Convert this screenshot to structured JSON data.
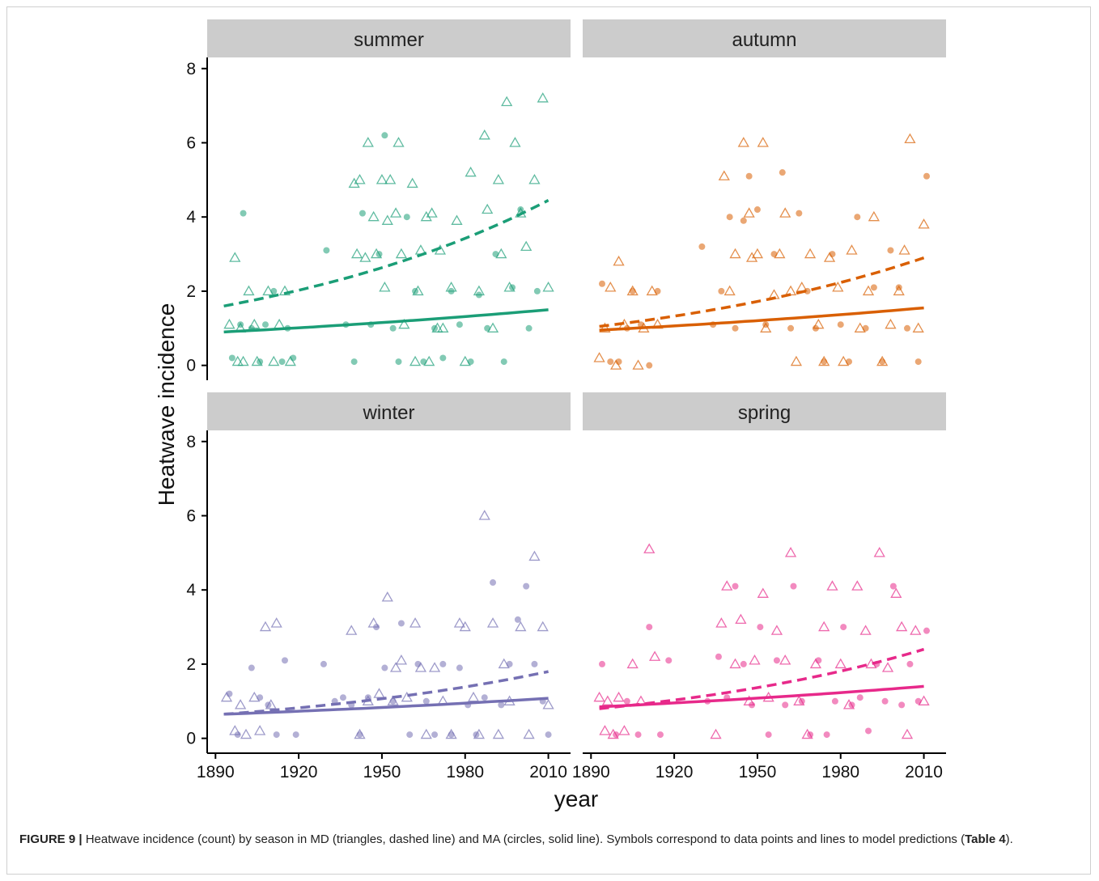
{
  "caption": {
    "label": "FIGURE 9 |",
    "text_before": " Heatwave incidence (count) by season in MD (triangles, dashed line) and MA (circles, solid line). Symbols correspond to data points and lines to model predictions (",
    "ref": "Table 4",
    "text_after": ")."
  },
  "chart_data": {
    "type": "scatter",
    "xlabel": "year",
    "ylabel": "Heatwave incidence",
    "xlim": [
      1887,
      2018
    ],
    "ylim": [
      -0.4,
      8.3
    ],
    "xticks": [
      1890,
      1920,
      1950,
      1980,
      2010
    ],
    "yticks": [
      0,
      2,
      4,
      6,
      8
    ],
    "grid": false,
    "legend": "none",
    "panels": [
      {
        "facet": "summer",
        "color": "#1b9e77",
        "MD": {
          "x": [
            1895,
            1897,
            1898,
            1899,
            1900,
            1902,
            1904,
            1905,
            1909,
            1911,
            1913,
            1915,
            1917,
            1940,
            1941,
            1942,
            1944,
            1945,
            1947,
            1948,
            1950,
            1951,
            1952,
            1953,
            1955,
            1956,
            1957,
            1958,
            1961,
            1962,
            1963,
            1964,
            1966,
            1967,
            1968,
            1970,
            1971,
            1972,
            1975,
            1977,
            1980,
            1982,
            1985,
            1987,
            1988,
            1990,
            1992,
            1993,
            1995,
            1996,
            1998,
            2000,
            2002,
            2005,
            2008,
            2010
          ],
          "y": [
            1.1,
            2.9,
            0.1,
            1.0,
            0.1,
            2.0,
            1.1,
            0.1,
            2.0,
            0.1,
            1.1,
            2.0,
            0.1,
            4.9,
            3.0,
            5.0,
            2.9,
            6.0,
            4.0,
            3.0,
            5.0,
            2.1,
            3.9,
            5.0,
            4.1,
            6.0,
            3.0,
            1.1,
            4.9,
            0.1,
            2.0,
            3.1,
            4.0,
            0.1,
            4.1,
            1.0,
            3.1,
            1.0,
            2.1,
            3.9,
            0.1,
            5.2,
            2.0,
            6.2,
            4.2,
            1.0,
            5.0,
            3.0,
            7.1,
            2.1,
            6.0,
            4.1,
            3.2,
            5.0,
            7.2,
            2.1
          ],
          "fit": {
            "x": [
              1893,
              2010
            ],
            "y": [
              1.6,
              4.45
            ]
          }
        },
        "MA": {
          "x": [
            1896,
            1899,
            1900,
            1903,
            1906,
            1908,
            1911,
            1914,
            1916,
            1918,
            1930,
            1937,
            1940,
            1943,
            1946,
            1949,
            1951,
            1954,
            1956,
            1959,
            1962,
            1965,
            1969,
            1972,
            1975,
            1978,
            1982,
            1985,
            1988,
            1991,
            1994,
            1997,
            2000,
            2003,
            2006
          ],
          "y": [
            0.2,
            1.1,
            4.1,
            1.0,
            0.1,
            1.1,
            2.0,
            0.1,
            1.0,
            0.2,
            3.1,
            1.1,
            0.1,
            4.1,
            1.1,
            3.0,
            6.2,
            1.0,
            0.1,
            4.0,
            2.0,
            0.1,
            1.0,
            0.2,
            2.0,
            1.1,
            0.1,
            1.9,
            1.0,
            3.0,
            0.1,
            2.1,
            4.2,
            1.0,
            2.0
          ],
          "fit": {
            "x": [
              1893,
              2010
            ],
            "y": [
              0.9,
              1.5
            ]
          }
        }
      },
      {
        "facet": "autumn",
        "color": "#d95f02",
        "MD": {
          "x": [
            1893,
            1895,
            1897,
            1899,
            1900,
            1902,
            1905,
            1907,
            1909,
            1912,
            1914,
            1938,
            1940,
            1942,
            1945,
            1947,
            1948,
            1950,
            1952,
            1953,
            1956,
            1958,
            1960,
            1962,
            1964,
            1966,
            1969,
            1972,
            1974,
            1976,
            1979,
            1981,
            1984,
            1987,
            1990,
            1992,
            1995,
            1998,
            2001,
            2003,
            2005,
            2008,
            2010
          ],
          "y": [
            0.2,
            1.0,
            2.1,
            0.0,
            2.8,
            1.1,
            2.0,
            0.0,
            1.0,
            2.0,
            1.1,
            5.1,
            2.0,
            3.0,
            6.0,
            4.1,
            2.9,
            3.0,
            6.0,
            1.0,
            1.9,
            3.0,
            4.1,
            2.0,
            0.1,
            2.1,
            3.0,
            1.1,
            0.1,
            2.9,
            2.1,
            0.1,
            3.1,
            1.0,
            2.0,
            4.0,
            0.1,
            1.1,
            2.0,
            3.1,
            6.1,
            1.0,
            3.8
          ],
          "fit": {
            "x": [
              1893,
              2010
            ],
            "y": [
              1.05,
              2.9
            ]
          }
        },
        "MA": {
          "x": [
            1894,
            1897,
            1900,
            1903,
            1905,
            1908,
            1911,
            1914,
            1930,
            1934,
            1937,
            1940,
            1942,
            1945,
            1947,
            1950,
            1953,
            1956,
            1959,
            1962,
            1965,
            1968,
            1971,
            1974,
            1977,
            1980,
            1983,
            1986,
            1989,
            1992,
            1995,
            1998,
            2001,
            2004,
            2008,
            2011
          ],
          "y": [
            2.2,
            0.1,
            0.1,
            1.0,
            2.0,
            1.1,
            0.0,
            2.0,
            3.2,
            1.1,
            2.0,
            4.0,
            1.0,
            3.9,
            5.1,
            4.2,
            1.1,
            3.0,
            5.2,
            1.0,
            4.1,
            2.0,
            1.0,
            0.1,
            3.0,
            1.1,
            0.1,
            4.0,
            1.0,
            2.1,
            0.1,
            3.1,
            2.1,
            1.0,
            0.1,
            5.1
          ],
          "fit": {
            "x": [
              1893,
              2010
            ],
            "y": [
              0.95,
              1.55
            ]
          }
        }
      },
      {
        "facet": "winter",
        "color": "#7570b3",
        "MD": {
          "x": [
            1894,
            1897,
            1899,
            1901,
            1904,
            1906,
            1908,
            1910,
            1912,
            1939,
            1942,
            1945,
            1947,
            1949,
            1952,
            1954,
            1955,
            1957,
            1959,
            1962,
            1964,
            1966,
            1969,
            1972,
            1975,
            1978,
            1980,
            1983,
            1985,
            1987,
            1990,
            1992,
            1994,
            1996,
            2000,
            2003,
            2005,
            2008,
            2010
          ],
          "y": [
            1.1,
            0.2,
            0.9,
            0.1,
            1.1,
            0.2,
            3.0,
            0.9,
            3.1,
            2.9,
            0.1,
            1.0,
            3.1,
            1.2,
            3.8,
            1.0,
            1.9,
            2.1,
            1.1,
            3.1,
            1.9,
            0.1,
            1.9,
            1.0,
            0.1,
            3.1,
            3.0,
            1.1,
            0.1,
            6.0,
            3.1,
            0.1,
            2.0,
            1.0,
            3.0,
            0.1,
            4.9,
            3.0,
            0.9
          ],
          "fit": {
            "x": [
              1893,
              2010
            ],
            "y": [
              0.65,
              1.8
            ]
          }
        },
        "MA": {
          "x": [
            1895,
            1898,
            1903,
            1906,
            1909,
            1912,
            1915,
            1919,
            1929,
            1933,
            1936,
            1939,
            1942,
            1945,
            1948,
            1951,
            1954,
            1957,
            1960,
            1963,
            1966,
            1969,
            1972,
            1975,
            1978,
            1981,
            1984,
            1987,
            1990,
            1993,
            1996,
            1999,
            2002,
            2005,
            2008,
            2010
          ],
          "y": [
            1.2,
            0.1,
            1.9,
            1.1,
            0.9,
            0.1,
            2.1,
            0.1,
            2.0,
            1.0,
            1.1,
            0.9,
            0.1,
            1.1,
            3.0,
            1.9,
            1.0,
            3.1,
            0.1,
            2.0,
            1.0,
            0.1,
            2.0,
            0.1,
            1.9,
            0.9,
            0.1,
            1.1,
            4.2,
            0.9,
            2.0,
            3.2,
            4.1,
            2.0,
            1.0,
            0.1
          ],
          "fit": {
            "x": [
              1893,
              2010
            ],
            "y": [
              0.65,
              1.08
            ]
          }
        }
      },
      {
        "facet": "spring",
        "color": "#e7298a",
        "MD": {
          "x": [
            1893,
            1895,
            1896,
            1898,
            1900,
            1902,
            1905,
            1908,
            1911,
            1913,
            1935,
            1937,
            1939,
            1942,
            1944,
            1947,
            1949,
            1952,
            1954,
            1957,
            1960,
            1962,
            1965,
            1968,
            1971,
            1974,
            1977,
            1980,
            1983,
            1986,
            1989,
            1991,
            1994,
            1997,
            2000,
            2002,
            2004,
            2007,
            2010
          ],
          "y": [
            1.1,
            0.2,
            1.0,
            0.1,
            1.1,
            0.2,
            2.0,
            1.0,
            5.1,
            2.2,
            0.1,
            3.1,
            4.1,
            2.0,
            3.2,
            1.0,
            2.1,
            3.9,
            1.1,
            2.9,
            2.1,
            5.0,
            1.0,
            0.1,
            2.0,
            3.0,
            4.1,
            2.0,
            0.9,
            4.1,
            2.9,
            2.0,
            5.0,
            1.9,
            3.9,
            3.0,
            0.1,
            2.9,
            1.0
          ],
          "fit": {
            "x": [
              1893,
              2010
            ],
            "y": [
              0.8,
              2.4
            ]
          }
        },
        "MA": {
          "x": [
            1894,
            1899,
            1903,
            1907,
            1911,
            1915,
            1918,
            1932,
            1936,
            1939,
            1942,
            1945,
            1948,
            1951,
            1954,
            1957,
            1960,
            1963,
            1966,
            1969,
            1972,
            1975,
            1978,
            1981,
            1984,
            1987,
            1990,
            1993,
            1996,
            1999,
            2002,
            2005,
            2008,
            2011
          ],
          "y": [
            2.0,
            0.1,
            1.0,
            0.1,
            3.0,
            0.1,
            2.1,
            1.0,
            2.2,
            1.1,
            4.1,
            2.0,
            0.9,
            3.0,
            0.1,
            2.1,
            0.9,
            4.1,
            1.0,
            0.1,
            2.1,
            0.1,
            1.0,
            3.0,
            0.9,
            1.1,
            0.2,
            2.0,
            1.0,
            4.1,
            0.9,
            2.0,
            1.0,
            2.9
          ],
          "fit": {
            "x": [
              1893,
              2010
            ],
            "y": [
              0.85,
              1.4
            ]
          }
        }
      }
    ]
  }
}
